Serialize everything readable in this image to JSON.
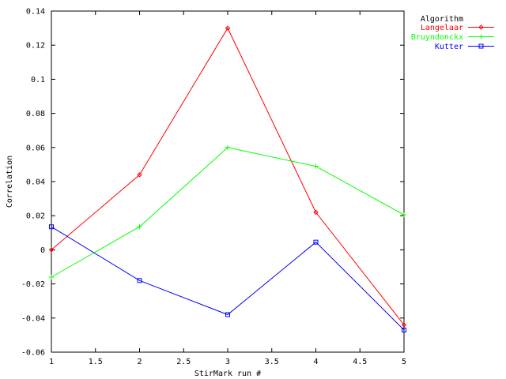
{
  "chart_data": {
    "type": "line",
    "title": "",
    "xlabel": "StirMark run #",
    "ylabel": "Correlation",
    "xlim": [
      1,
      5
    ],
    "ylim": [
      -0.06,
      0.14
    ],
    "x_ticks": [
      1,
      1.5,
      2,
      2.5,
      3,
      3.5,
      4,
      4.5,
      5
    ],
    "x_tick_labels": [
      "1",
      "1.5",
      "2",
      "2.5",
      "3",
      "3.5",
      "4",
      "4.5",
      "5"
    ],
    "y_ticks": [
      -0.06,
      -0.04,
      -0.02,
      0,
      0.02,
      0.04,
      0.06,
      0.08,
      0.1,
      0.12,
      0.14
    ],
    "y_tick_labels": [
      "-0.06",
      "-0.04",
      "-0.02",
      "0",
      "0.02",
      "0.04",
      "0.06",
      "0.08",
      "0.1",
      "0.12",
      "0.14"
    ],
    "grid": false,
    "legend": {
      "title": "Algorithm",
      "placement": "top-right outside"
    },
    "x": [
      1,
      2,
      3,
      4,
      5
    ],
    "series": [
      {
        "name": "Langelaar",
        "color": "#ff0000",
        "marker": "diamond",
        "values": [
          0.0,
          0.044,
          0.13,
          0.022,
          -0.044
        ]
      },
      {
        "name": "Bruyndonckx",
        "color": "#00ff00",
        "marker": "plus",
        "values": [
          -0.016,
          0.0135,
          0.06,
          0.049,
          0.0205
        ]
      },
      {
        "name": "Kutter",
        "color": "#0000ff",
        "marker": "square",
        "values": [
          0.0135,
          -0.018,
          -0.038,
          0.0045,
          -0.047
        ]
      }
    ]
  }
}
